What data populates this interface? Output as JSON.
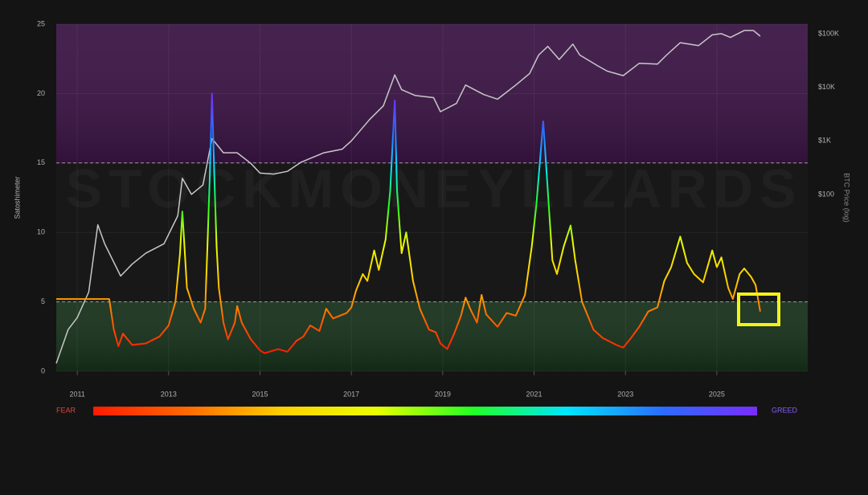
{
  "chart_data": {
    "type": "line",
    "y_label": "Satoshimeter",
    "y2_label": "BTC Price (log)",
    "watermark": "STOCKMONEYLIZARDS",
    "xlim": [
      2010.54,
      2026.99
    ],
    "xticks": [
      2011,
      2013,
      2015,
      2017,
      2019,
      2021,
      2023,
      2025
    ],
    "ylim": [
      0,
      25
    ],
    "yticks": [
      0,
      5,
      10,
      15,
      20,
      25
    ],
    "y2lim": [
      0.05,
      151000
    ],
    "y2ticks": [
      {
        "value": 100,
        "label": "$100"
      },
      {
        "value": 1000,
        "label": "$1K"
      },
      {
        "value": 10000,
        "label": "$10K"
      },
      {
        "value": 100000,
        "label": "$100K"
      }
    ],
    "y2_log": true,
    "grid": true,
    "thresholds": [
      5,
      15
    ],
    "zones": [
      {
        "from": 15,
        "to": 25,
        "color": "#3a1444"
      },
      {
        "from": 0,
        "to": 5,
        "color": "#16301a"
      }
    ],
    "colorscale": [
      "#ff1a00",
      "#ff6a00",
      "#ffd000",
      "#e8ff00",
      "#22ff22",
      "#00e5ff",
      "#2a6cff",
      "#7a2cff"
    ],
    "colorbar_low": "FEAR",
    "colorbar_high": "GREED",
    "series": [
      {
        "name": "Satoshimeter",
        "color": "gradient",
        "x": [
          2010.54,
          2011.7,
          2011.8,
          2011.9,
          2012.0,
          2012.2,
          2012.5,
          2012.8,
          2013.0,
          2013.15,
          2013.25,
          2013.3,
          2013.4,
          2013.55,
          2013.7,
          2013.8,
          2013.85,
          2013.9,
          2013.95,
          2014.0,
          2014.05,
          2014.1,
          2014.2,
          2014.3,
          2014.45,
          2014.5,
          2014.6,
          2014.8,
          2015.0,
          2015.1,
          2015.4,
          2015.6,
          2015.8,
          2015.95,
          2016.1,
          2016.3,
          2016.45,
          2016.6,
          2016.9,
          2017.0,
          2017.1,
          2017.25,
          2017.35,
          2017.5,
          2017.6,
          2017.75,
          2017.85,
          2017.95,
          2018.0,
          2018.1,
          2018.2,
          2018.35,
          2018.5,
          2018.7,
          2018.85,
          2018.95,
          2019.1,
          2019.25,
          2019.4,
          2019.5,
          2019.6,
          2019.75,
          2019.85,
          2019.95,
          2020.2,
          2020.4,
          2020.6,
          2020.8,
          2020.95,
          2021.05,
          2021.2,
          2021.3,
          2021.4,
          2021.5,
          2021.65,
          2021.8,
          2021.9,
          2022.05,
          2022.3,
          2022.5,
          2022.8,
          2022.95,
          2023.1,
          2023.3,
          2023.5,
          2023.7,
          2023.85,
          2024.0,
          2024.2,
          2024.35,
          2024.5,
          2024.7,
          2024.9,
          2025.0,
          2025.1,
          2025.25,
          2025.35,
          2025.5,
          2025.6,
          2025.75,
          2025.85,
          2025.95
        ],
        "values": [
          5.2,
          5.2,
          3.0,
          1.8,
          2.7,
          1.9,
          2.0,
          2.5,
          3.3,
          5.0,
          8.5,
          11.5,
          6.0,
          4.5,
          3.5,
          4.5,
          9.0,
          14.0,
          20.0,
          14.0,
          9.0,
          6.0,
          3.5,
          2.3,
          3.5,
          4.7,
          3.5,
          2.3,
          1.5,
          1.3,
          1.6,
          1.4,
          2.2,
          2.5,
          3.3,
          2.9,
          4.5,
          3.8,
          4.2,
          4.6,
          5.8,
          7.0,
          6.5,
          8.7,
          7.3,
          9.5,
          13.0,
          19.5,
          13.0,
          8.5,
          10.0,
          6.5,
          4.5,
          3.0,
          2.8,
          2.0,
          1.6,
          2.7,
          4.0,
          5.3,
          4.5,
          3.5,
          5.5,
          4.1,
          3.2,
          4.2,
          4.0,
          5.5,
          9.0,
          12.0,
          18.0,
          13.0,
          8.0,
          7.0,
          9.0,
          10.5,
          8.0,
          5.0,
          3.0,
          2.4,
          1.9,
          1.7,
          2.3,
          3.2,
          4.3,
          4.6,
          6.5,
          7.5,
          9.7,
          7.8,
          7.0,
          6.4,
          8.7,
          7.5,
          8.2,
          6.0,
          5.2,
          7.0,
          7.4,
          6.8,
          6.2,
          4.3
        ]
      },
      {
        "name": "BTC Price",
        "color": "#c8c8c8",
        "axis": "y2",
        "x": [
          2010.54,
          2010.8,
          2011.0,
          2011.25,
          2011.45,
          2011.6,
          2011.95,
          2012.2,
          2012.5,
          2012.9,
          2013.2,
          2013.3,
          2013.5,
          2013.75,
          2013.95,
          2014.2,
          2014.5,
          2014.8,
          2015.0,
          2015.3,
          2015.6,
          2015.9,
          2016.4,
          2016.8,
          2017.0,
          2017.4,
          2017.7,
          2017.95,
          2018.1,
          2018.4,
          2018.8,
          2018.95,
          2019.3,
          2019.5,
          2019.9,
          2020.2,
          2020.6,
          2020.9,
          2021.1,
          2021.3,
          2021.55,
          2021.85,
          2022.0,
          2022.4,
          2022.6,
          2022.95,
          2023.3,
          2023.7,
          2023.9,
          2024.2,
          2024.6,
          2024.9,
          2025.1,
          2025.3,
          2025.6,
          2025.8,
          2025.95
        ],
        "values": [
          0.07,
          0.3,
          0.5,
          1.5,
          27,
          12,
          3,
          5,
          8,
          12,
          40,
          200,
          100,
          150,
          1100,
          600,
          600,
          380,
          250,
          240,
          270,
          400,
          600,
          700,
          1000,
          2500,
          4500,
          17000,
          9000,
          7000,
          6400,
          3500,
          5000,
          11000,
          7300,
          6000,
          11000,
          18000,
          40000,
          58000,
          33000,
          64000,
          40000,
          25000,
          20000,
          16500,
          28000,
          27000,
          40000,
          68000,
          60000,
          95000,
          100000,
          85000,
          115000,
          115000,
          90000
        ]
      }
    ]
  }
}
